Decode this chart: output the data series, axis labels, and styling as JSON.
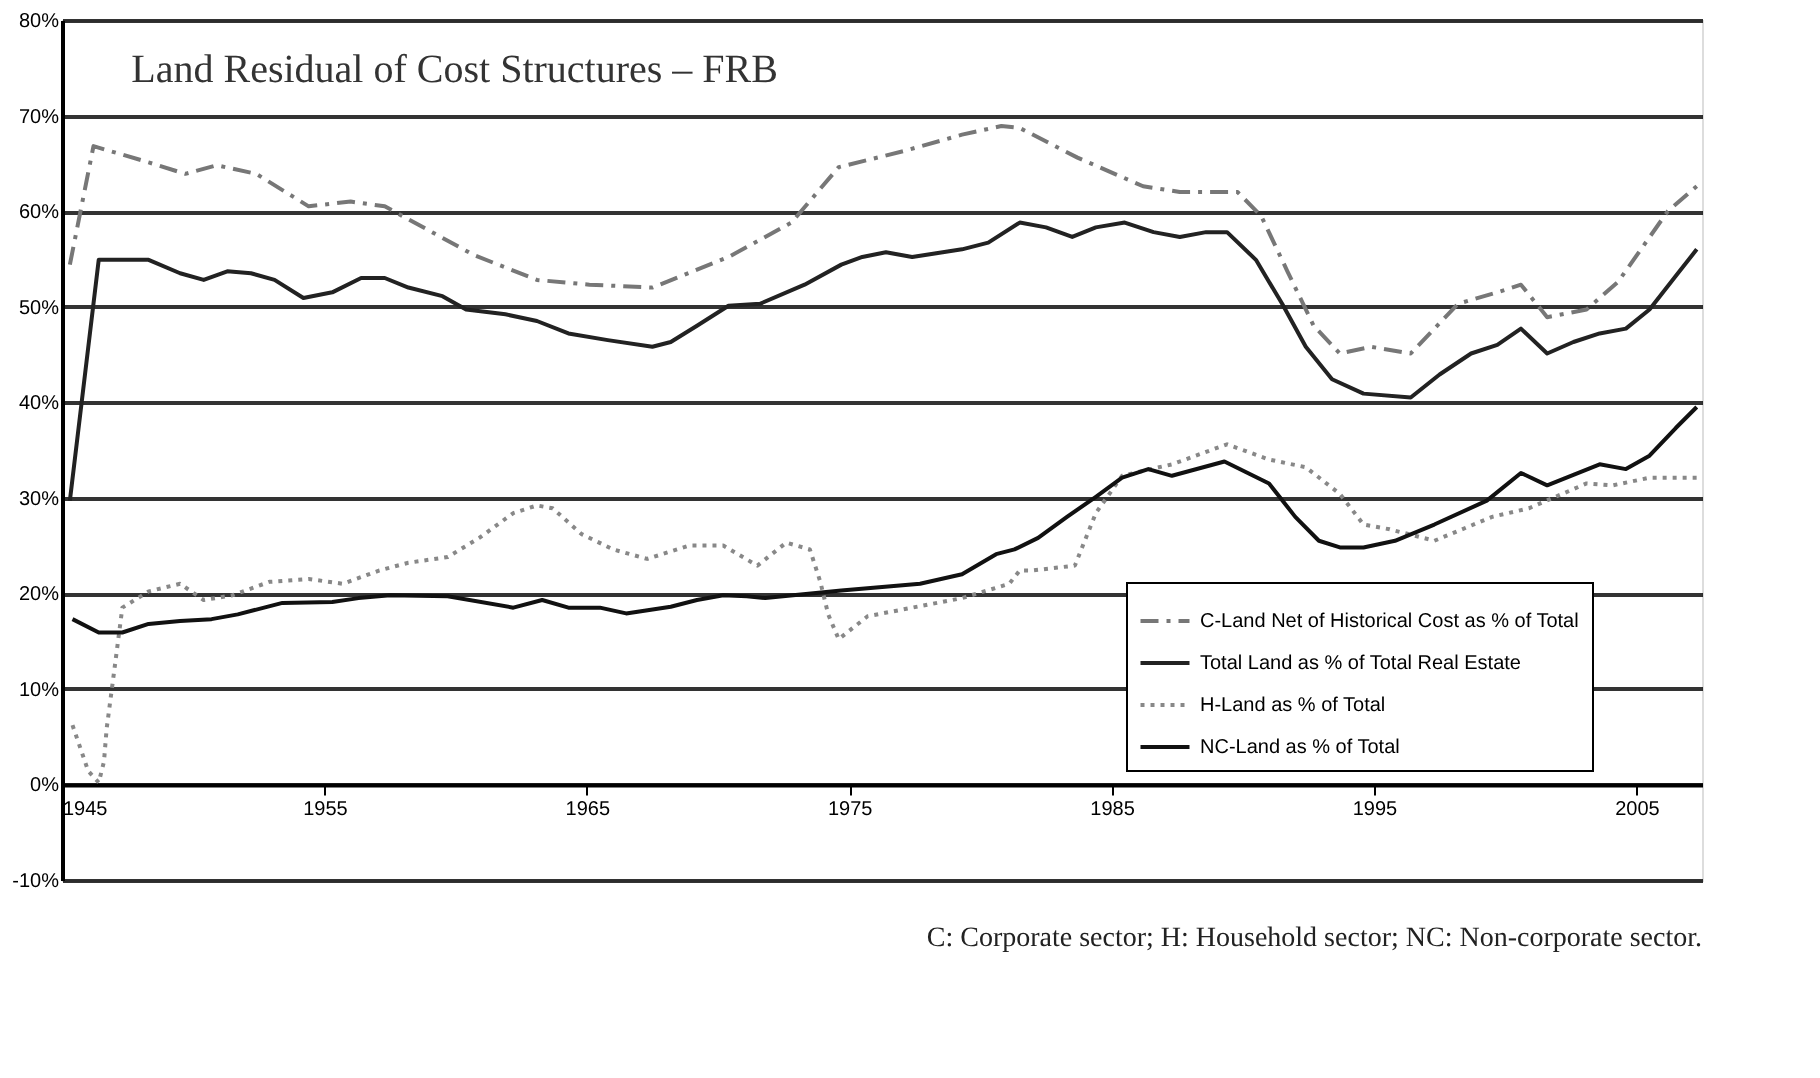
{
  "chart_data": {
    "type": "line",
    "title": "Land Residual of Cost Structures – FRB",
    "xlim": [
      1945,
      2007.5
    ],
    "xticks": [
      1945,
      1955,
      1965,
      1975,
      1985,
      1995,
      2005
    ],
    "ylim": [
      -10,
      80
    ],
    "yticks": [
      {
        "value": -10,
        "label": "-10%"
      },
      {
        "value": 0,
        "label": "0%"
      },
      {
        "value": 10,
        "label": "10%"
      },
      {
        "value": 20,
        "label": "20%"
      },
      {
        "value": 30,
        "label": "30%"
      },
      {
        "value": 40,
        "label": "40%"
      },
      {
        "value": 50,
        "label": "50%"
      },
      {
        "value": 60,
        "label": "60%"
      },
      {
        "value": 70,
        "label": "70%"
      },
      {
        "value": 80,
        "label": "80%"
      }
    ],
    "grid": "y",
    "legend": "bottom right",
    "marker": "none",
    "annotations": [
      "C:   Corporate sector;   H:   Household sector;   NC:   Non-corporate sector."
    ],
    "series": [
      {
        "name": "C-Land Net of Historical Cost as % of Total",
        "color": "#777777",
        "line_style": "dashed",
        "x": [
          1945.3,
          1946.2,
          1948.3,
          1949.7,
          1950.9,
          1952.4,
          1954.4,
          1956,
          1957.3,
          1960.7,
          1963.1,
          1965.1,
          1967.5,
          1970.4,
          1972.8,
          1974.6,
          1977.1,
          1979.3,
          1980.8,
          1981.5,
          1983.7,
          1986.2,
          1987.6,
          1989.8,
          1990.7,
          1991.7,
          1992.7,
          1993.7,
          1994.9,
          1996.4,
          1998.2,
          1999.7,
          2000.6,
          2001.6,
          2003.1,
          2004.3,
          2006.2,
          2007.3
        ],
        "values": [
          54.4,
          66.8,
          65.1,
          63.9,
          64.8,
          63.9,
          60.5,
          61,
          60.5,
          55.4,
          52.8,
          52.3,
          52,
          55.2,
          58.8,
          64.6,
          66.3,
          68,
          68.9,
          68.7,
          65.6,
          62.6,
          62,
          62,
          59.5,
          53.7,
          48,
          45.1,
          45.8,
          45.1,
          50.3,
          51.5,
          52.3,
          48.9,
          49.7,
          52.6,
          60,
          62.6
        ]
      },
      {
        "name": "Total Land as % of Total Real Estate",
        "color": "#222222",
        "line_style": "solid",
        "x": [
          1945.3,
          1946.4,
          1948.3,
          1949.5,
          1950.4,
          1951.3,
          1952.2,
          1953.1,
          1954.2,
          1955.3,
          1956.4,
          1957.3,
          1958.2,
          1959.5,
          1960.4,
          1961.9,
          1963.1,
          1964.3,
          1965.8,
          1967.5,
          1968.2,
          1969.2,
          1970.4,
          1971.6,
          1973.3,
          1974.7,
          1975.5,
          1976.4,
          1977.4,
          1979.3,
          1980.3,
          1981.5,
          1982.5,
          1983.5,
          1984.4,
          1985.5,
          1986.6,
          1987.6,
          1988.6,
          1989.4,
          1990.5,
          1991.5,
          1992.4,
          1993.4,
          1994.6,
          1996.4,
          1997.5,
          1998.7,
          1999.7,
          2000.6,
          2001.6,
          2002.6,
          2003.6,
          2004.6,
          2005.5,
          2006.5,
          2007.3
        ],
        "values": [
          29.7,
          54.9,
          54.9,
          53.5,
          52.8,
          53.7,
          53.5,
          52.8,
          50.9,
          51.5,
          53,
          53,
          52,
          51.1,
          49.7,
          49.2,
          48.5,
          47.2,
          46.5,
          45.8,
          46.3,
          48,
          50.1,
          50.3,
          52.3,
          54.4,
          55.2,
          55.7,
          55.2,
          56,
          56.7,
          58.8,
          58.3,
          57.3,
          58.3,
          58.8,
          57.8,
          57.3,
          57.8,
          57.8,
          54.9,
          50.3,
          45.8,
          42.4,
          40.9,
          40.5,
          42.9,
          45.1,
          46,
          47.7,
          45.1,
          46.3,
          47.2,
          47.7,
          49.7,
          53.2,
          56
        ]
      },
      {
        "name": "H-Land as % of Total",
        "color": "#888888",
        "line_style": "dotted",
        "x": [
          1945.4,
          1946,
          1946.4,
          1946.6,
          1946.7,
          1947,
          1947.3,
          1948.3,
          1949.5,
          1950.4,
          1951.5,
          1952.9,
          1954.4,
          1955.7,
          1957.1,
          1958.2,
          1959.7,
          1960.9,
          1962.2,
          1963.1,
          1963.7,
          1964.8,
          1966,
          1967.3,
          1968.9,
          1970.2,
          1971.5,
          1972.6,
          1973.5,
          1973.9,
          1974.2,
          1974.6,
          1975.7,
          1977.4,
          1979.3,
          1981.1,
          1981.5,
          1982,
          1983.6,
          1984.4,
          1985.4,
          1987.3,
          1989.4,
          1991,
          1992.4,
          1993.7,
          1994.6,
          1995.6,
          1997.3,
          1999.5,
          2000.9,
          2003.1,
          2004.1,
          2005.5,
          2007.3
        ],
        "values": [
          6.2,
          1.4,
          0.2,
          2.4,
          5.8,
          12.1,
          18.5,
          20.2,
          21,
          19.3,
          19.8,
          21.2,
          21.5,
          21,
          22.4,
          23.2,
          23.8,
          25.8,
          28.4,
          29.2,
          28.9,
          26.2,
          24.6,
          23.6,
          25,
          25,
          22.9,
          25.3,
          24.6,
          21.2,
          17.8,
          15.2,
          17.6,
          18.5,
          19.5,
          21,
          22.4,
          22.4,
          22.9,
          28.4,
          32.3,
          33.5,
          35.6,
          34,
          33.2,
          30.4,
          27.2,
          26.7,
          25.5,
          28,
          28.9,
          31.5,
          31.3,
          32.1,
          32.1
        ]
      },
      {
        "name": "NC-Land as % of Total",
        "color": "#111111",
        "line_style": "solid",
        "x": [
          1945.4,
          1946.4,
          1947.3,
          1948.3,
          1949.5,
          1950.7,
          1951.7,
          1953.4,
          1955.3,
          1956.3,
          1957.5,
          1959.7,
          1962.2,
          1963.3,
          1964.3,
          1965.5,
          1966.5,
          1968.2,
          1969.2,
          1970.2,
          1971.1,
          1971.8,
          1974.7,
          1977.7,
          1979.3,
          1980.6,
          1981.3,
          1982.2,
          1983.3,
          1984.4,
          1985.4,
          1986.4,
          1987.3,
          1989.3,
          1991,
          1992,
          1992.9,
          1993.7,
          1994.6,
          1995.8,
          1997.3,
          1999.3,
          2000.6,
          2001.6,
          2003.6,
          2004.6,
          2005.5,
          2006.5,
          2007.3
        ],
        "values": [
          17.3,
          15.9,
          15.9,
          16.8,
          17.1,
          17.3,
          17.8,
          19,
          19.1,
          19.5,
          19.8,
          19.7,
          18.5,
          19.3,
          18.5,
          18.5,
          17.9,
          18.6,
          19.3,
          19.8,
          19.7,
          19.5,
          20.3,
          21,
          22,
          24.1,
          24.6,
          25.8,
          28,
          30.1,
          32.1,
          33,
          32.3,
          33.8,
          31.5,
          28,
          25.5,
          24.8,
          24.8,
          25.5,
          27.2,
          29.7,
          32.6,
          31.3,
          33.5,
          33,
          34.4,
          37.3,
          39.5
        ]
      }
    ]
  }
}
